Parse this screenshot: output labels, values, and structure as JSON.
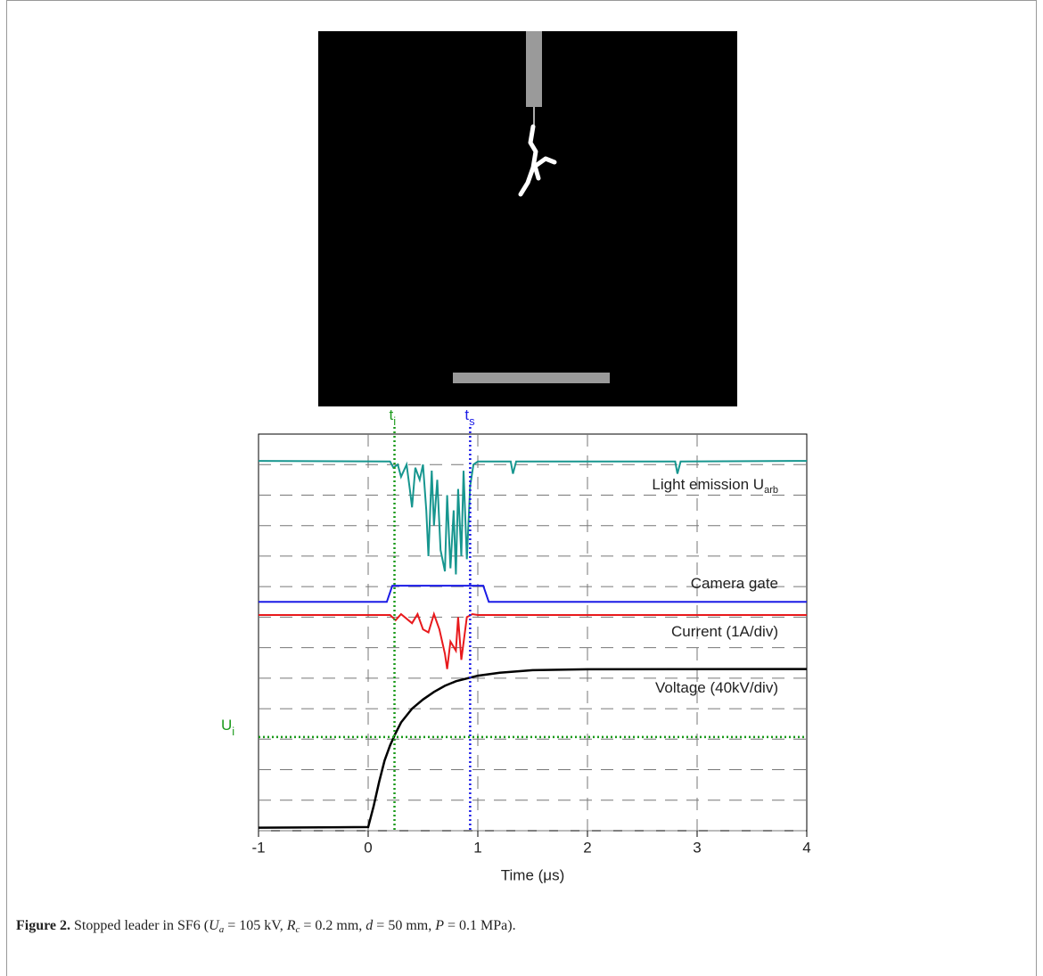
{
  "chart_data": {
    "type": "line",
    "xlabel": "Time (μs)",
    "xlim": [
      -1,
      4
    ],
    "xticks": [
      -1,
      0,
      1,
      2,
      3,
      4
    ],
    "ylim": [
      0,
      13
    ],
    "yticks": [
      0,
      1,
      2,
      3,
      4,
      5,
      6,
      7,
      8,
      9,
      10,
      11,
      12
    ],
    "grid": true,
    "series": [
      {
        "name": "Light emission U",
        "name_subscript": "arb",
        "color": "#17968f",
        "x": [
          -1,
          0.2,
          0.23,
          0.27,
          0.3,
          0.35,
          0.38,
          0.4,
          0.43,
          0.47,
          0.5,
          0.53,
          0.55,
          0.58,
          0.6,
          0.63,
          0.66,
          0.7,
          0.72,
          0.75,
          0.78,
          0.8,
          0.82,
          0.85,
          0.87,
          0.9,
          0.93,
          0.96,
          1.0,
          1.3,
          1.32,
          1.35,
          2.8,
          2.82,
          2.85,
          4
        ],
        "values": [
          12.12,
          12.1,
          11.9,
          12.0,
          11.6,
          12.0,
          11.2,
          10.6,
          11.9,
          11.5,
          12.0,
          10.5,
          9.0,
          11.8,
          10.0,
          11.5,
          9.2,
          8.5,
          11.0,
          8.6,
          10.5,
          8.4,
          11.2,
          9.0,
          11.8,
          8.9,
          11.3,
          12.0,
          12.1,
          12.1,
          11.7,
          12.1,
          12.1,
          11.7,
          12.1,
          12.12
        ]
      },
      {
        "name": "Camera gate",
        "color": "#1a1ae6",
        "x": [
          -1,
          0.17,
          0.22,
          1.05,
          1.1,
          4
        ],
        "values": [
          7.5,
          7.5,
          8.03,
          8.03,
          7.5,
          7.5
        ]
      },
      {
        "name": "Current (1A/div)",
        "color": "#e8191c",
        "x": [
          -1,
          0.2,
          0.25,
          0.3,
          0.4,
          0.45,
          0.5,
          0.55,
          0.6,
          0.65,
          0.7,
          0.72,
          0.75,
          0.8,
          0.82,
          0.85,
          0.9,
          0.95,
          1.0,
          4
        ],
        "values": [
          7.07,
          7.07,
          6.9,
          7.1,
          6.8,
          7.1,
          6.6,
          6.5,
          7.1,
          6.6,
          5.8,
          5.3,
          6.2,
          5.9,
          7.0,
          5.6,
          7.0,
          7.1,
          7.07,
          7.07
        ]
      },
      {
        "name": "Voltage (40kV/div)",
        "color": "#000000",
        "x": [
          -1,
          0,
          0.05,
          0.1,
          0.15,
          0.2,
          0.25,
          0.3,
          0.4,
          0.5,
          0.6,
          0.7,
          0.8,
          1.0,
          1.2,
          1.5,
          2,
          4
        ],
        "values": [
          0.1,
          0.12,
          0.8,
          1.6,
          2.3,
          2.8,
          3.2,
          3.55,
          4.0,
          4.3,
          4.55,
          4.75,
          4.9,
          5.08,
          5.18,
          5.26,
          5.29,
          5.3
        ]
      }
    ],
    "annotations": [
      {
        "label": "t",
        "subscript": "i",
        "x": 0.24,
        "color": "#1a9a1a"
      },
      {
        "label": "t",
        "subscript": "s",
        "x": 0.93,
        "color": "#1a1ae6"
      },
      {
        "label": "U",
        "subscript": "i",
        "y": 3.07,
        "color": "#1a9a1a"
      }
    ]
  },
  "caption": {
    "label": "Figure 2.",
    "parts": [
      {
        "text": " Stopped leader in SF6 (",
        "style": "normal"
      },
      {
        "text": "U",
        "style": "italic"
      },
      {
        "text": "a",
        "style": "italic-sub"
      },
      {
        "text": " = 105 kV, ",
        "style": "normal"
      },
      {
        "text": "R",
        "style": "italic"
      },
      {
        "text": "c",
        "style": "italic-sub"
      },
      {
        "text": " = 0.2 mm, ",
        "style": "normal"
      },
      {
        "text": "d",
        "style": "italic"
      },
      {
        "text": " = 50 mm, ",
        "style": "normal"
      },
      {
        "text": "P",
        "style": "italic"
      },
      {
        "text": " = 0.1 MPa).",
        "style": "normal"
      }
    ]
  }
}
